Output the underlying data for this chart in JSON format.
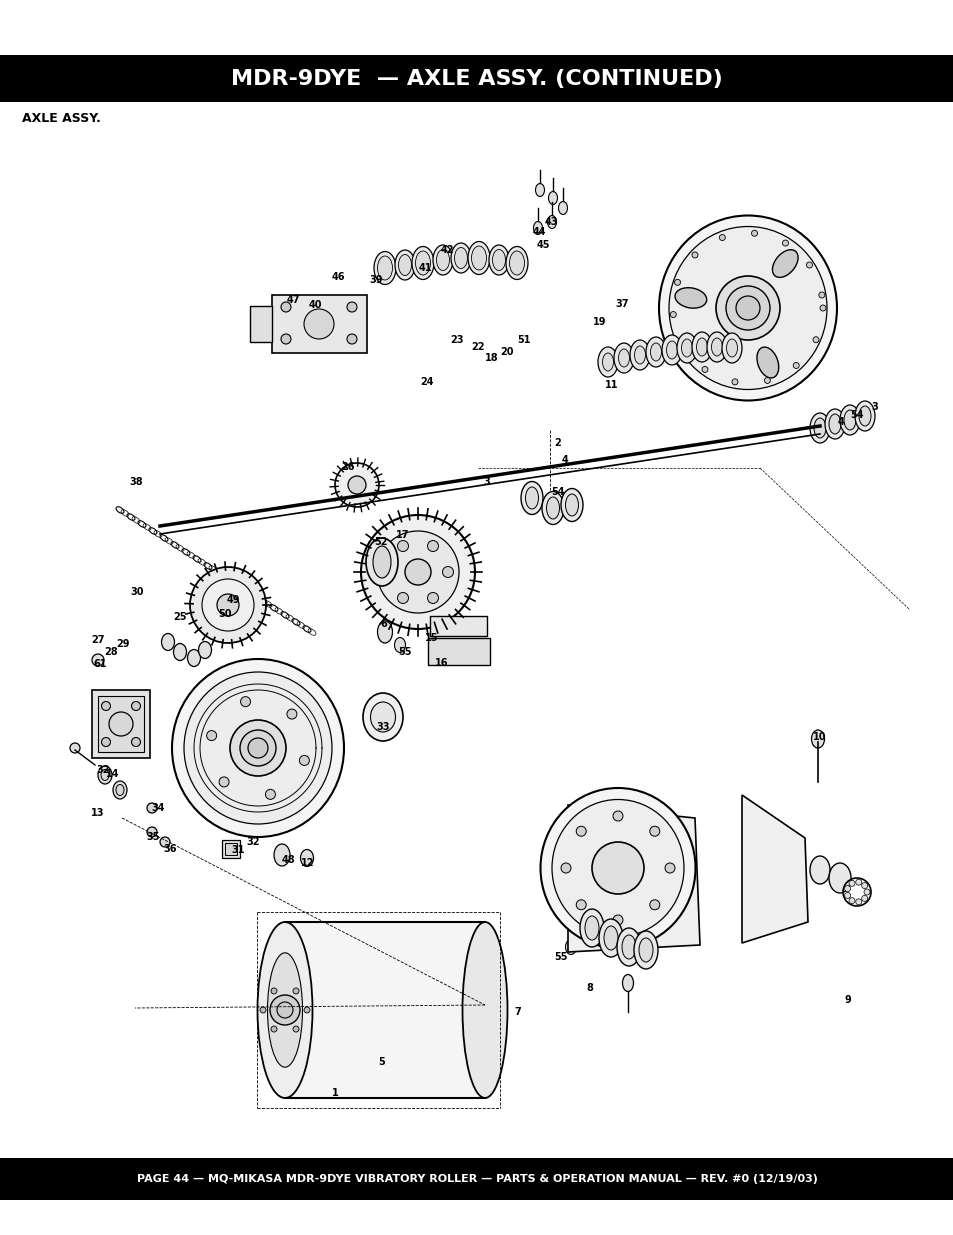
{
  "title": "MDR-9DYE  — AXLE ASSY. (CONTINUED)",
  "subtitle": "AXLE ASSY.",
  "footer": "PAGE 44 — MQ-MIKASA MDR-9DYE VIBRATORY ROLLER — PARTS & OPERATION MANUAL — REV. #0 (12/19/03)",
  "title_bg": "#000000",
  "title_color": "#ffffff",
  "footer_bg": "#000000",
  "footer_color": "#ffffff",
  "page_bg": "#ffffff",
  "diagram_color": "#000000",
  "title_fontsize": 16,
  "subtitle_fontsize": 9,
  "footer_fontsize": 8
}
